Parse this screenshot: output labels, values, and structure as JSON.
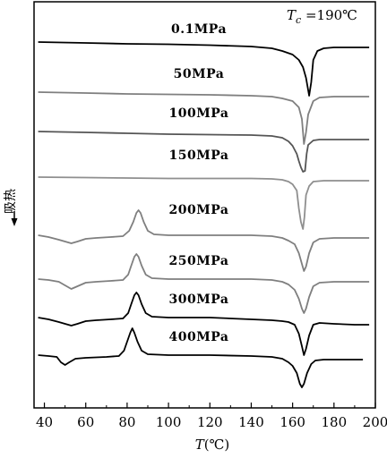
{
  "chart_data": {
    "type": "line",
    "annotation": {
      "symbol": "T",
      "subscript": "c",
      "text": " =190℃"
    },
    "xlabel": {
      "symbol": "T",
      "unit": "(℃)"
    },
    "ylabel": "吸热",
    "xlim": [
      35,
      200
    ],
    "xticks": [
      40,
      60,
      80,
      100,
      120,
      140,
      160,
      180,
      200
    ],
    "y_ticks_shown": false,
    "grid": false,
    "series": [
      {
        "name": "0.1MPa",
        "color": "#000000",
        "baseline": 47,
        "points": [
          [
            37,
            0
          ],
          [
            60,
            1
          ],
          [
            80,
            2
          ],
          [
            100,
            2.5
          ],
          [
            120,
            3.5
          ],
          [
            140,
            5
          ],
          [
            150,
            7
          ],
          [
            155,
            10
          ],
          [
            160,
            14
          ],
          [
            163,
            20
          ],
          [
            165,
            28
          ],
          [
            166.5,
            40
          ],
          [
            168,
            60
          ],
          [
            169,
            45
          ],
          [
            170,
            20
          ],
          [
            172,
            10
          ],
          [
            175,
            7
          ],
          [
            180,
            6
          ],
          [
            190,
            6
          ],
          [
            197,
            6
          ]
        ]
      },
      {
        "name": "50MPa",
        "color": "#7f7f7f",
        "baseline": 103,
        "points": [
          [
            37,
            0
          ],
          [
            60,
            1
          ],
          [
            80,
            2
          ],
          [
            100,
            2.5
          ],
          [
            120,
            3
          ],
          [
            140,
            4
          ],
          [
            150,
            5
          ],
          [
            155,
            7
          ],
          [
            160,
            10
          ],
          [
            163,
            17
          ],
          [
            164.5,
            30
          ],
          [
            165.5,
            58
          ],
          [
            166.5,
            45
          ],
          [
            167.5,
            25
          ],
          [
            170,
            10
          ],
          [
            173,
            6
          ],
          [
            180,
            5
          ],
          [
            190,
            5
          ],
          [
            197,
            5
          ]
        ]
      },
      {
        "name": "100MPa",
        "color": "#555555",
        "baseline": 147,
        "points": [
          [
            37,
            0
          ],
          [
            60,
            1
          ],
          [
            80,
            2
          ],
          [
            100,
            3
          ],
          [
            120,
            3.5
          ],
          [
            140,
            4
          ],
          [
            150,
            5
          ],
          [
            155,
            7
          ],
          [
            158,
            11
          ],
          [
            160,
            16
          ],
          [
            162,
            25
          ],
          [
            163,
            33
          ],
          [
            164,
            40
          ],
          [
            165,
            45
          ],
          [
            166,
            44
          ],
          [
            166.8,
            25
          ],
          [
            167.5,
            15
          ],
          [
            170,
            10
          ],
          [
            173,
            9
          ],
          [
            180,
            9
          ],
          [
            197,
            9
          ]
        ]
      },
      {
        "name": "150MPa",
        "color": "#8f8f8f",
        "baseline": 198,
        "points": [
          [
            37,
            0
          ],
          [
            60,
            0.5
          ],
          [
            80,
            1
          ],
          [
            100,
            1.5
          ],
          [
            120,
            1.5
          ],
          [
            140,
            1.5
          ],
          [
            150,
            2
          ],
          [
            155,
            3
          ],
          [
            158,
            5
          ],
          [
            160,
            8
          ],
          [
            162,
            15
          ],
          [
            163,
            35
          ],
          [
            164,
            50
          ],
          [
            165,
            58
          ],
          [
            165.7,
            45
          ],
          [
            166.5,
            20
          ],
          [
            168,
            10
          ],
          [
            170,
            5
          ],
          [
            175,
            4
          ],
          [
            185,
            4
          ],
          [
            197,
            4
          ]
        ]
      },
      {
        "name": "200MPa",
        "color": "#7f7f7f",
        "baseline": 263,
        "points": [
          [
            37,
            0
          ],
          [
            42,
            2
          ],
          [
            47,
            5
          ],
          [
            50,
            7
          ],
          [
            53,
            9
          ],
          [
            56,
            7
          ],
          [
            60,
            4
          ],
          [
            65,
            3
          ],
          [
            72,
            2
          ],
          [
            78,
            1
          ],
          [
            81,
            -5
          ],
          [
            83,
            -15
          ],
          [
            84.5,
            -25
          ],
          [
            85.5,
            -28
          ],
          [
            86.5,
            -25
          ],
          [
            88,
            -15
          ],
          [
            90,
            -5
          ],
          [
            93,
            -1
          ],
          [
            100,
            0
          ],
          [
            120,
            0
          ],
          [
            140,
            0
          ],
          [
            150,
            1
          ],
          [
            155,
            3
          ],
          [
            158,
            6
          ],
          [
            161,
            10
          ],
          [
            163,
            20
          ],
          [
            164.5,
            32
          ],
          [
            165.5,
            40
          ],
          [
            166.5,
            35
          ],
          [
            168,
            20
          ],
          [
            170,
            8
          ],
          [
            173,
            4
          ],
          [
            180,
            3
          ],
          [
            190,
            3
          ],
          [
            197,
            3
          ]
        ]
      },
      {
        "name": "250MPa",
        "color": "#7f7f7f",
        "baseline": 312,
        "points": [
          [
            37,
            0
          ],
          [
            42,
            1
          ],
          [
            47,
            3
          ],
          [
            50,
            7
          ],
          [
            53,
            11
          ],
          [
            56,
            8
          ],
          [
            60,
            4
          ],
          [
            65,
            3
          ],
          [
            72,
            2
          ],
          [
            78,
            1
          ],
          [
            80.5,
            -5
          ],
          [
            82,
            -15
          ],
          [
            83.5,
            -25
          ],
          [
            84.5,
            -28
          ],
          [
            85.5,
            -25
          ],
          [
            87,
            -15
          ],
          [
            89,
            -5
          ],
          [
            92,
            -1
          ],
          [
            100,
            0
          ],
          [
            120,
            0
          ],
          [
            140,
            0
          ],
          [
            150,
            1
          ],
          [
            155,
            3
          ],
          [
            158,
            6
          ],
          [
            161,
            12
          ],
          [
            163,
            22
          ],
          [
            164.5,
            33
          ],
          [
            165.5,
            38
          ],
          [
            166.5,
            33
          ],
          [
            168,
            20
          ],
          [
            170,
            8
          ],
          [
            173,
            4
          ],
          [
            180,
            3
          ],
          [
            190,
            3
          ],
          [
            197,
            3
          ]
        ]
      },
      {
        "name": "300MPa",
        "color": "#000000",
        "baseline": 355,
        "points": [
          [
            37,
            0
          ],
          [
            42,
            2
          ],
          [
            47,
            5
          ],
          [
            50,
            7
          ],
          [
            53,
            9
          ],
          [
            56,
            7
          ],
          [
            60,
            4
          ],
          [
            65,
            3
          ],
          [
            72,
            2
          ],
          [
            78,
            1
          ],
          [
            80.5,
            -5
          ],
          [
            82,
            -15
          ],
          [
            83.5,
            -25
          ],
          [
            84.5,
            -28
          ],
          [
            85.5,
            -25
          ],
          [
            87,
            -15
          ],
          [
            89,
            -5
          ],
          [
            92,
            -1
          ],
          [
            100,
            0
          ],
          [
            120,
            0
          ],
          [
            140,
            2
          ],
          [
            150,
            3
          ],
          [
            155,
            4
          ],
          [
            158,
            5
          ],
          [
            161,
            8
          ],
          [
            163,
            18
          ],
          [
            164.5,
            32
          ],
          [
            165.5,
            42
          ],
          [
            166.5,
            35
          ],
          [
            168,
            20
          ],
          [
            170,
            8
          ],
          [
            173,
            6
          ],
          [
            180,
            7
          ],
          [
            190,
            8
          ],
          [
            197,
            8
          ]
        ]
      },
      {
        "name": "400MPa",
        "color": "#000000",
        "baseline": 397,
        "points": [
          [
            37,
            0
          ],
          [
            42,
            1
          ],
          [
            46,
            2
          ],
          [
            48,
            8
          ],
          [
            50,
            11
          ],
          [
            52,
            8
          ],
          [
            55,
            4
          ],
          [
            60,
            3
          ],
          [
            70,
            2
          ],
          [
            76,
            1
          ],
          [
            78.5,
            -5
          ],
          [
            80,
            -15
          ],
          [
            81.5,
            -25
          ],
          [
            82.5,
            -30
          ],
          [
            83.5,
            -25
          ],
          [
            85,
            -15
          ],
          [
            87,
            -5
          ],
          [
            90,
            -1
          ],
          [
            100,
            0
          ],
          [
            120,
            0
          ],
          [
            140,
            1
          ],
          [
            150,
            2
          ],
          [
            155,
            4
          ],
          [
            158,
            8
          ],
          [
            160,
            12
          ],
          [
            162,
            20
          ],
          [
            163.5,
            32
          ],
          [
            164.5,
            36
          ],
          [
            165.5,
            32
          ],
          [
            167,
            20
          ],
          [
            169,
            10
          ],
          [
            171,
            6
          ],
          [
            175,
            5
          ],
          [
            185,
            5
          ],
          [
            194,
            5
          ]
        ]
      }
    ]
  }
}
